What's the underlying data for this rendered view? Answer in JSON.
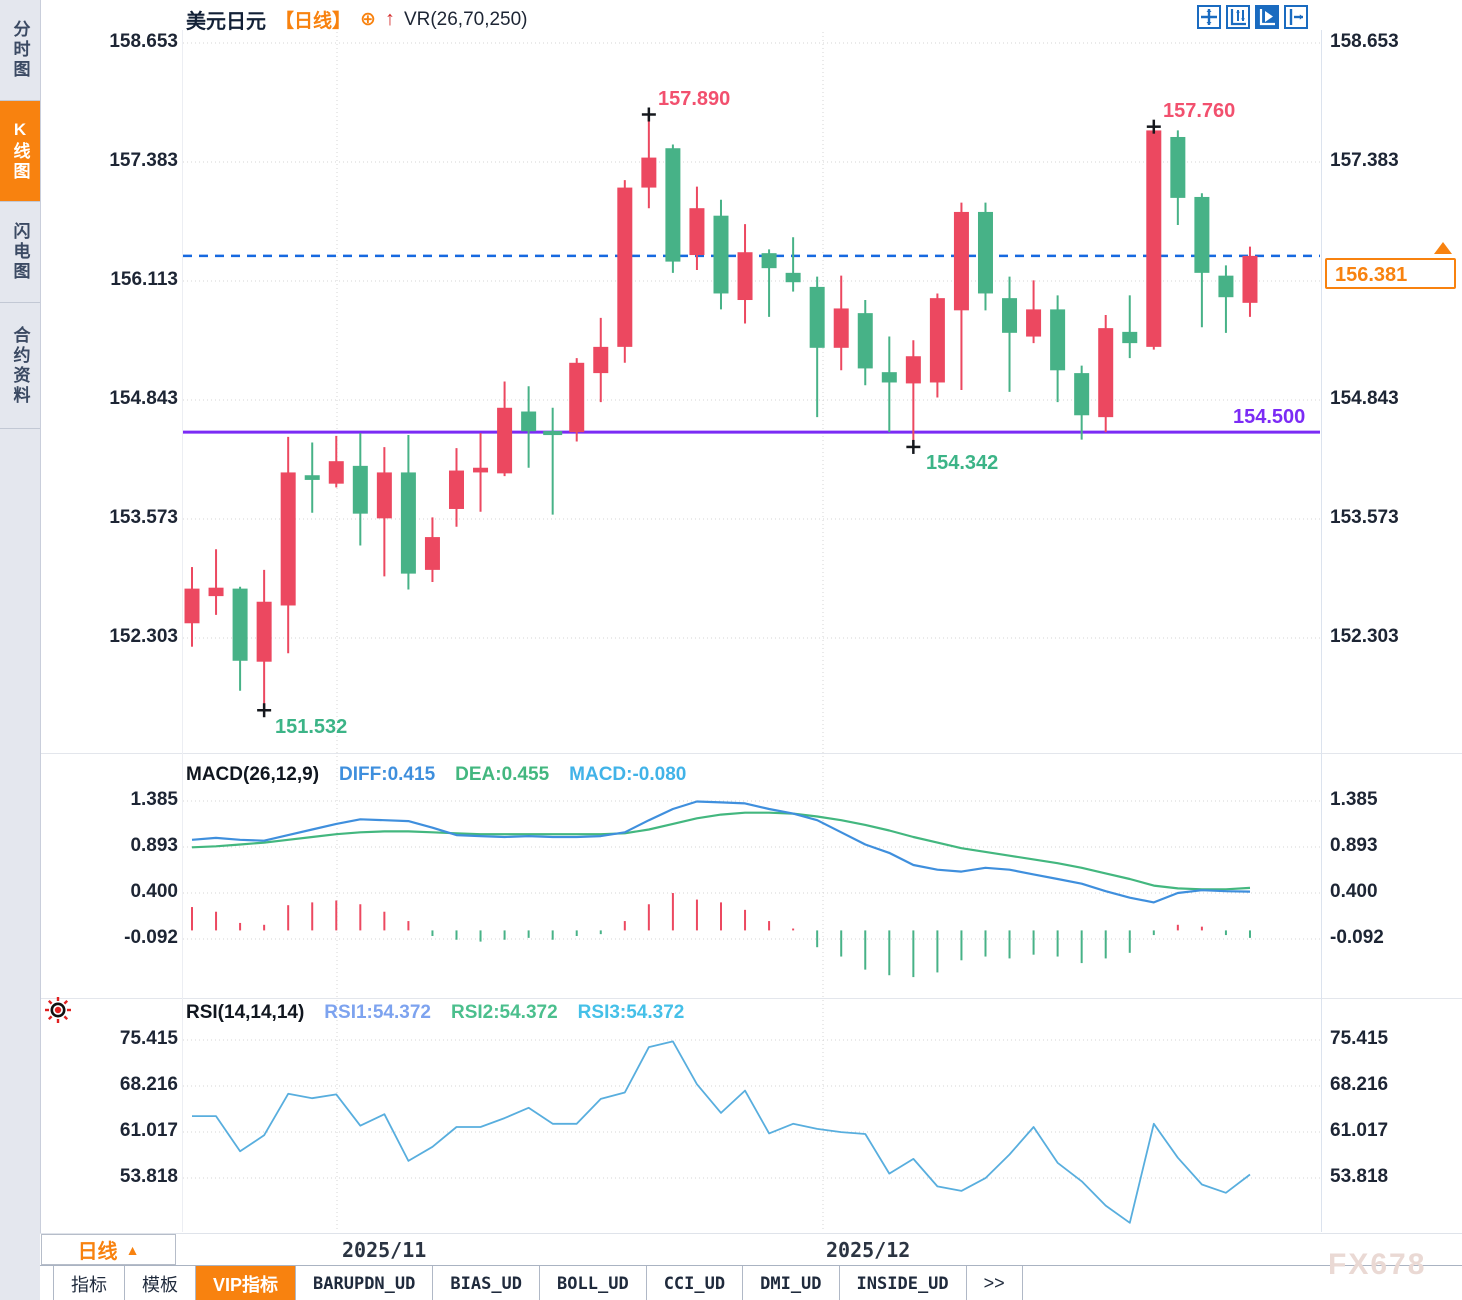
{
  "sidebar": {
    "items": [
      {
        "label": "分时图",
        "active": false
      },
      {
        "label": "K线图",
        "active": true
      },
      {
        "label": "闪电图",
        "active": false
      },
      {
        "label": "合约资料",
        "active": false
      }
    ]
  },
  "header": {
    "symbol": "美元日元",
    "period_tag": "【日线】",
    "add_icon": "⊕",
    "trend_arrow": "↑",
    "indicator": "VR(26,70,250)",
    "tools": [
      "move",
      "y-axis-scale",
      "auto-scale",
      "pan-right"
    ]
  },
  "price_axis": {
    "labels": [
      "158.653",
      "157.383",
      "156.113",
      "154.843",
      "153.573",
      "152.303"
    ]
  },
  "annotations": {
    "peak1": "157.890",
    "peak2": "157.760",
    "trough1": "151.532",
    "trough2": "154.342",
    "support_label": "154.500",
    "last_price": "156.381"
  },
  "macd": {
    "title": "MACD(26,12,9)",
    "diff_label": "DIFF:0.415",
    "dea_label": "DEA:0.455",
    "macd_label": "MACD:-0.080",
    "axis": [
      "1.385",
      "0.893",
      "0.400",
      "-0.092"
    ]
  },
  "rsi": {
    "title": "RSI(14,14,14)",
    "rsi1_label": "RSI1:54.372",
    "rsi2_label": "RSI2:54.372",
    "rsi3_label": "RSI3:54.372",
    "axis": [
      "75.415",
      "68.216",
      "61.017",
      "53.818"
    ]
  },
  "xaxis": {
    "labels": [
      "2025/11",
      "2025/12"
    ],
    "period_button": "日线",
    "caret": "▲",
    "watermark": "FX678"
  },
  "bottom_tabs": {
    "items": [
      "指标",
      "模板",
      "VIP指标",
      "BARUPDN_UD",
      "BIAS_UD",
      "BOLL_UD",
      "CCI_UD",
      "DMI_UD",
      "INSIDE_UD",
      ">>"
    ],
    "active": "VIP指标"
  },
  "colors": {
    "up_red": "#ec4860",
    "down_green": "#47b287",
    "accent_orange": "#f8820f",
    "dashed_blue": "#1669e0",
    "support_purple": "#7b2bf5",
    "diff_blue": "#3f8fdd",
    "dea_green": "#43b77f",
    "macd_cyan": "#41b3e8",
    "rsi_blue": "#58aede",
    "icon_blue": "#1a6bc0",
    "grid_grey": "#d4d4d4"
  },
  "chart_data": [
    {
      "type": "candlestick",
      "title": "美元日元 日线 (USD/JPY daily)",
      "axis_ticks": [
        158.653,
        157.383,
        156.113,
        154.843,
        153.573,
        152.303
      ],
      "ylim": [
        151.3,
        158.9
      ],
      "x_labels": [
        "2025/11",
        "2025/12"
      ],
      "last_price_line": 156.381,
      "support_line": 154.5,
      "candles": [
        [
          152.46,
          153.06,
          152.21,
          152.83
        ],
        [
          152.75,
          153.25,
          152.55,
          152.84
        ],
        [
          152.83,
          152.85,
          151.74,
          152.06
        ],
        [
          152.05,
          153.03,
          151.532,
          152.69
        ],
        [
          152.65,
          154.45,
          152.14,
          154.07
        ],
        [
          154.04,
          154.39,
          153.64,
          153.99
        ],
        [
          153.95,
          154.46,
          153.91,
          154.19
        ],
        [
          154.14,
          154.49,
          153.29,
          153.63
        ],
        [
          153.58,
          154.34,
          152.96,
          154.07
        ],
        [
          154.07,
          154.47,
          152.82,
          152.99
        ],
        [
          153.03,
          153.59,
          152.9,
          153.38
        ],
        [
          153.68,
          154.33,
          153.49,
          154.09
        ],
        [
          154.07,
          154.49,
          153.65,
          154.12
        ],
        [
          154.06,
          155.04,
          154.03,
          154.76
        ],
        [
          154.72,
          154.99,
          154.12,
          154.51
        ],
        [
          154.5,
          154.76,
          153.62,
          154.48
        ],
        [
          154.5,
          155.29,
          154.4,
          155.24
        ],
        [
          155.13,
          155.72,
          154.82,
          155.41
        ],
        [
          155.41,
          157.19,
          155.24,
          157.11
        ],
        [
          157.11,
          157.89,
          156.89,
          157.43
        ],
        [
          157.53,
          157.57,
          156.2,
          156.32
        ],
        [
          156.39,
          157.12,
          156.23,
          156.89
        ],
        [
          156.81,
          156.98,
          155.81,
          155.98
        ],
        [
          155.91,
          156.72,
          155.66,
          156.42
        ],
        [
          156.41,
          156.45,
          155.73,
          156.25
        ],
        [
          156.2,
          156.58,
          156.0,
          156.1
        ],
        [
          156.05,
          156.16,
          154.66,
          155.4
        ],
        [
          155.4,
          156.17,
          155.16,
          155.82
        ],
        [
          155.77,
          155.91,
          155.0,
          155.18
        ],
        [
          155.14,
          155.52,
          154.5,
          155.03
        ],
        [
          155.02,
          155.48,
          154.342,
          155.31
        ],
        [
          155.03,
          155.98,
          154.87,
          155.93
        ],
        [
          155.8,
          156.95,
          154.95,
          156.85
        ],
        [
          156.85,
          156.95,
          155.8,
          155.98
        ],
        [
          155.93,
          156.16,
          154.93,
          155.56
        ],
        [
          155.52,
          156.12,
          155.45,
          155.81
        ],
        [
          155.81,
          155.96,
          154.82,
          155.16
        ],
        [
          155.13,
          155.21,
          154.42,
          154.68
        ],
        [
          154.66,
          155.75,
          154.5,
          155.61
        ],
        [
          155.57,
          155.96,
          155.29,
          155.45
        ],
        [
          155.41,
          157.76,
          155.38,
          157.72
        ],
        [
          157.65,
          157.72,
          156.71,
          157.0
        ],
        [
          157.01,
          157.05,
          155.62,
          156.2
        ],
        [
          156.17,
          156.28,
          155.56,
          155.94
        ],
        [
          155.88,
          156.48,
          155.73,
          156.381
        ]
      ],
      "markers": [
        {
          "index": 3,
          "at": "low",
          "label": "151.532"
        },
        {
          "index": 19,
          "at": "high",
          "label": "157.890"
        },
        {
          "index": 30,
          "at": "low",
          "label": "154.342"
        },
        {
          "index": 40,
          "at": "high",
          "label": "157.760"
        }
      ]
    },
    {
      "type": "macd",
      "title": "MACD(26,12,9)",
      "axis_ticks": [
        1.385,
        0.893,
        0.4,
        -0.092
      ],
      "diff": [
        0.97,
        0.99,
        0.97,
        0.96,
        1.02,
        1.08,
        1.14,
        1.19,
        1.18,
        1.17,
        1.1,
        1.02,
        1.01,
        1.0,
        1.01,
        1.0,
        1.0,
        1.01,
        1.05,
        1.18,
        1.3,
        1.38,
        1.37,
        1.36,
        1.3,
        1.25,
        1.18,
        1.05,
        0.92,
        0.83,
        0.7,
        0.65,
        0.63,
        0.67,
        0.65,
        0.6,
        0.55,
        0.5,
        0.42,
        0.35,
        0.3,
        0.4,
        0.43,
        0.42,
        0.415
      ],
      "dea": [
        0.89,
        0.9,
        0.92,
        0.94,
        0.97,
        1.0,
        1.03,
        1.05,
        1.06,
        1.06,
        1.05,
        1.04,
        1.03,
        1.03,
        1.03,
        1.03,
        1.03,
        1.03,
        1.04,
        1.08,
        1.14,
        1.2,
        1.24,
        1.26,
        1.26,
        1.25,
        1.22,
        1.18,
        1.13,
        1.07,
        1.0,
        0.94,
        0.88,
        0.84,
        0.8,
        0.76,
        0.72,
        0.67,
        0.61,
        0.55,
        0.48,
        0.45,
        0.44,
        0.44,
        0.455
      ],
      "hist": [
        0.25,
        0.2,
        0.08,
        0.06,
        0.27,
        0.3,
        0.32,
        0.28,
        0.2,
        0.1,
        -0.06,
        -0.1,
        -0.12,
        -0.1,
        -0.08,
        -0.1,
        -0.06,
        -0.04,
        0.1,
        0.28,
        0.4,
        0.33,
        0.3,
        0.22,
        0.1,
        0.02,
        -0.18,
        -0.28,
        -0.42,
        -0.48,
        -0.5,
        -0.45,
        -0.32,
        -0.28,
        -0.3,
        -0.26,
        -0.28,
        -0.35,
        -0.3,
        -0.24,
        -0.05,
        0.06,
        0.04,
        -0.05,
        -0.08
      ]
    },
    {
      "type": "line",
      "title": "RSI(14,14,14)",
      "axis_ticks": [
        75.415,
        68.216,
        61.017,
        53.818
      ],
      "values": [
        63.5,
        63.5,
        58.0,
        60.5,
        67.0,
        66.3,
        66.9,
        62.0,
        63.8,
        56.5,
        58.7,
        61.8,
        61.8,
        63.2,
        64.8,
        62.3,
        62.3,
        66.2,
        67.2,
        74.3,
        75.2,
        68.5,
        64.0,
        67.5,
        60.8,
        62.3,
        61.5,
        61.0,
        60.7,
        54.5,
        56.8,
        52.5,
        51.8,
        53.8,
        57.5,
        61.8,
        56.2,
        53.3,
        49.5,
        46.8,
        62.3,
        57.0,
        52.8,
        51.5,
        54.372
      ]
    }
  ]
}
